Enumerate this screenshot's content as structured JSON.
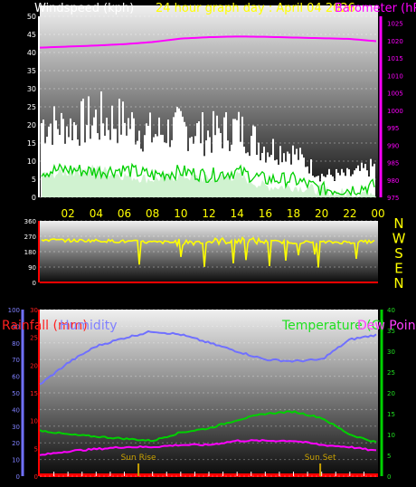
{
  "header": {
    "windspeed_label": "Windspeed (kph)",
    "graph_title": "24 hour graph day : April 04 2026",
    "barometer_label": "Barometer (hPa)"
  },
  "lower_header": {
    "rainfall_label": "Rainfall (mm)",
    "humidity_label": "Humidity",
    "temperature_label": "Temperature (C)",
    "dew_point_label": "Dew Point"
  },
  "colors": {
    "wind_gust": "#ffffff",
    "wind_avg": "#00d000",
    "wind_light": "#c8f0c8",
    "pressure": "#ff00ff",
    "direction": "#ffff00",
    "humidity": "#7070ff",
    "temperature": "#00d000",
    "dew_point": "#ff00ff",
    "rainfall": "#ff0000",
    "sun_marker": "#c8a000"
  },
  "chart_data": [
    {
      "type": "line",
      "title": "24 hour graph day : April 04 2026",
      "x_ticks": [
        "02",
        "04",
        "06",
        "08",
        "10",
        "12",
        "14",
        "16",
        "18",
        "20",
        "22",
        "00"
      ],
      "left_axis": {
        "label": "Windspeed (kph)",
        "ticks": [
          0,
          5,
          10,
          15,
          20,
          25,
          30,
          35,
          40,
          45,
          50
        ],
        "ylim": [
          0,
          50
        ]
      },
      "right_axis": {
        "label": "Barometer (hPa)",
        "ticks": [
          975,
          980,
          985,
          990,
          995,
          1000,
          1005,
          1010,
          1015,
          1020,
          1025
        ],
        "ylim": [
          975,
          1027
        ]
      },
      "hours": [
        0,
        2,
        4,
        6,
        8,
        10,
        12,
        14,
        16,
        18,
        20,
        22,
        24
      ],
      "series": [
        {
          "name": "Barometer (hPa)",
          "axis": "right",
          "values": [
            1018,
            1018.3,
            1018.6,
            1019,
            1019.6,
            1020.6,
            1021,
            1021.2,
            1021.1,
            1020.9,
            1020.7,
            1020.5,
            1019.8
          ]
        },
        {
          "name": "Windspeed (kph)",
          "axis": "left",
          "values": [
            13,
            14,
            13,
            14,
            11,
            13,
            11,
            13,
            9,
            9,
            4,
            4,
            6
          ]
        },
        {
          "name": "",
          "axis": "left",
          "values": [
            24,
            22,
            25,
            24,
            20,
            22,
            20,
            22,
            16,
            14,
            7,
            7,
            10
          ]
        },
        {
          "name": "",
          "axis": "left",
          "values": [
            6,
            7,
            8,
            6,
            5,
            6,
            5,
            6,
            3,
            3,
            2,
            1,
            2
          ]
        }
      ]
    },
    {
      "type": "line",
      "left_ticks": [
        0,
        90,
        180,
        270,
        360
      ],
      "right_ticks": [
        "N",
        "W",
        "S",
        "E",
        "N"
      ],
      "ylim": [
        0,
        360
      ],
      "hours": [
        0,
        2,
        4,
        6,
        8,
        10,
        12,
        14,
        16,
        18,
        20,
        22,
        24
      ],
      "series": [
        {
          "name": "",
          "values": [
            250,
            245,
            245,
            240,
            235,
            235,
            240,
            245,
            240,
            235,
            235,
            235,
            240
          ]
        }
      ]
    },
    {
      "type": "line",
      "humidity_axis": {
        "label": "Humidity",
        "ticks": [
          0,
          10,
          20,
          30,
          40,
          50,
          60,
          70,
          80,
          90,
          100
        ],
        "ylim": [
          0,
          100
        ]
      },
      "rain_axis": {
        "label": "Rainfall (mm)",
        "ticks": [
          0,
          5,
          10,
          15,
          20,
          25,
          30
        ],
        "ylim": [
          0,
          30
        ]
      },
      "temp_axis": {
        "label": "Temperature (C)",
        "ticks": [
          0,
          5,
          10,
          15,
          20,
          25,
          30,
          35,
          40
        ],
        "ylim": [
          0,
          40
        ]
      },
      "hours": [
        0,
        2,
        4,
        6,
        8,
        10,
        12,
        14,
        16,
        18,
        20,
        22,
        24
      ],
      "series": [
        {
          "name": "Humidity",
          "axis": "humidity",
          "values": [
            55,
            68,
            78,
            83,
            87,
            85,
            80,
            75,
            70,
            69,
            70,
            82,
            85
          ]
        },
        {
          "name": "Temperature (C)",
          "axis": "temp",
          "values": [
            11,
            10,
            9.5,
            9,
            8.5,
            10.5,
            11.5,
            13.5,
            15,
            15.5,
            14,
            10,
            8
          ]
        },
        {
          "name": "Dew Point",
          "axis": "temp",
          "values": [
            5,
            6,
            6.5,
            7,
            7,
            7.5,
            7.5,
            8.5,
            8.5,
            8.5,
            7.5,
            7,
            6
          ]
        },
        {
          "name": "Rainfall (mm)",
          "axis": "rain",
          "values": [
            0,
            0,
            0,
            0,
            0,
            0,
            0,
            0,
            0,
            0,
            0,
            0,
            0
          ]
        }
      ],
      "annotations": [
        {
          "text": "Sun Rise",
          "hour": 7.0
        },
        {
          "text": "Sun Set",
          "hour": 19.9
        }
      ]
    }
  ]
}
